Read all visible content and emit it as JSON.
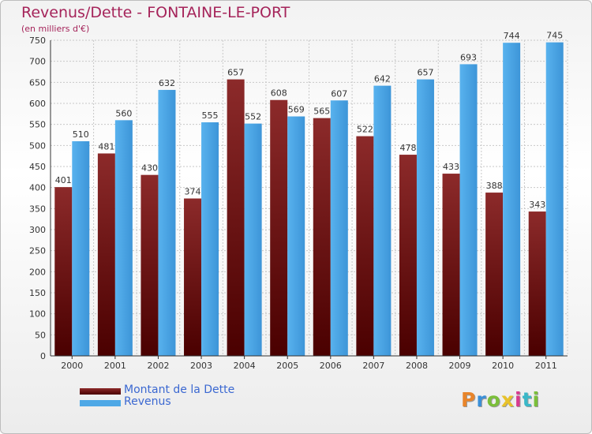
{
  "header": {
    "title": "Revenus/Dette - FONTAINE-LE-PORT",
    "subtitle": "(en milliers d'€)"
  },
  "chart_data": {
    "type": "bar",
    "title": "Revenus/Dette - FONTAINE-LE-PORT",
    "subtitle": "(en milliers d'€)",
    "categories": [
      "2000",
      "2001",
      "2002",
      "2003",
      "2004",
      "2005",
      "2006",
      "2007",
      "2008",
      "2009",
      "2010",
      "2011"
    ],
    "series": [
      {
        "name": "Montant de la Dette",
        "color": "#7a1a1a",
        "values": [
          401,
          481,
          430,
          374,
          657,
          608,
          565,
          522,
          478,
          433,
          388,
          343
        ]
      },
      {
        "name": "Revenus",
        "color": "#4ea8e6",
        "values": [
          510,
          560,
          632,
          555,
          552,
          569,
          607,
          642,
          657,
          693,
          744,
          745
        ]
      }
    ],
    "ylim": [
      0,
      750
    ],
    "yticks": [
      0,
      50,
      100,
      150,
      200,
      250,
      300,
      350,
      400,
      450,
      500,
      550,
      600,
      650,
      700,
      750
    ],
    "grid": true,
    "legend": "bottom-left",
    "data_labels": true
  },
  "logo": {
    "letters": [
      "P",
      "r",
      "o",
      "x",
      "i",
      "t",
      "i"
    ],
    "colors": [
      "#e8842a",
      "#3a8fd8",
      "#7bbf3a",
      "#e8c22a",
      "#d83a8f",
      "#3ab8c8",
      "#7bbf3a"
    ]
  }
}
